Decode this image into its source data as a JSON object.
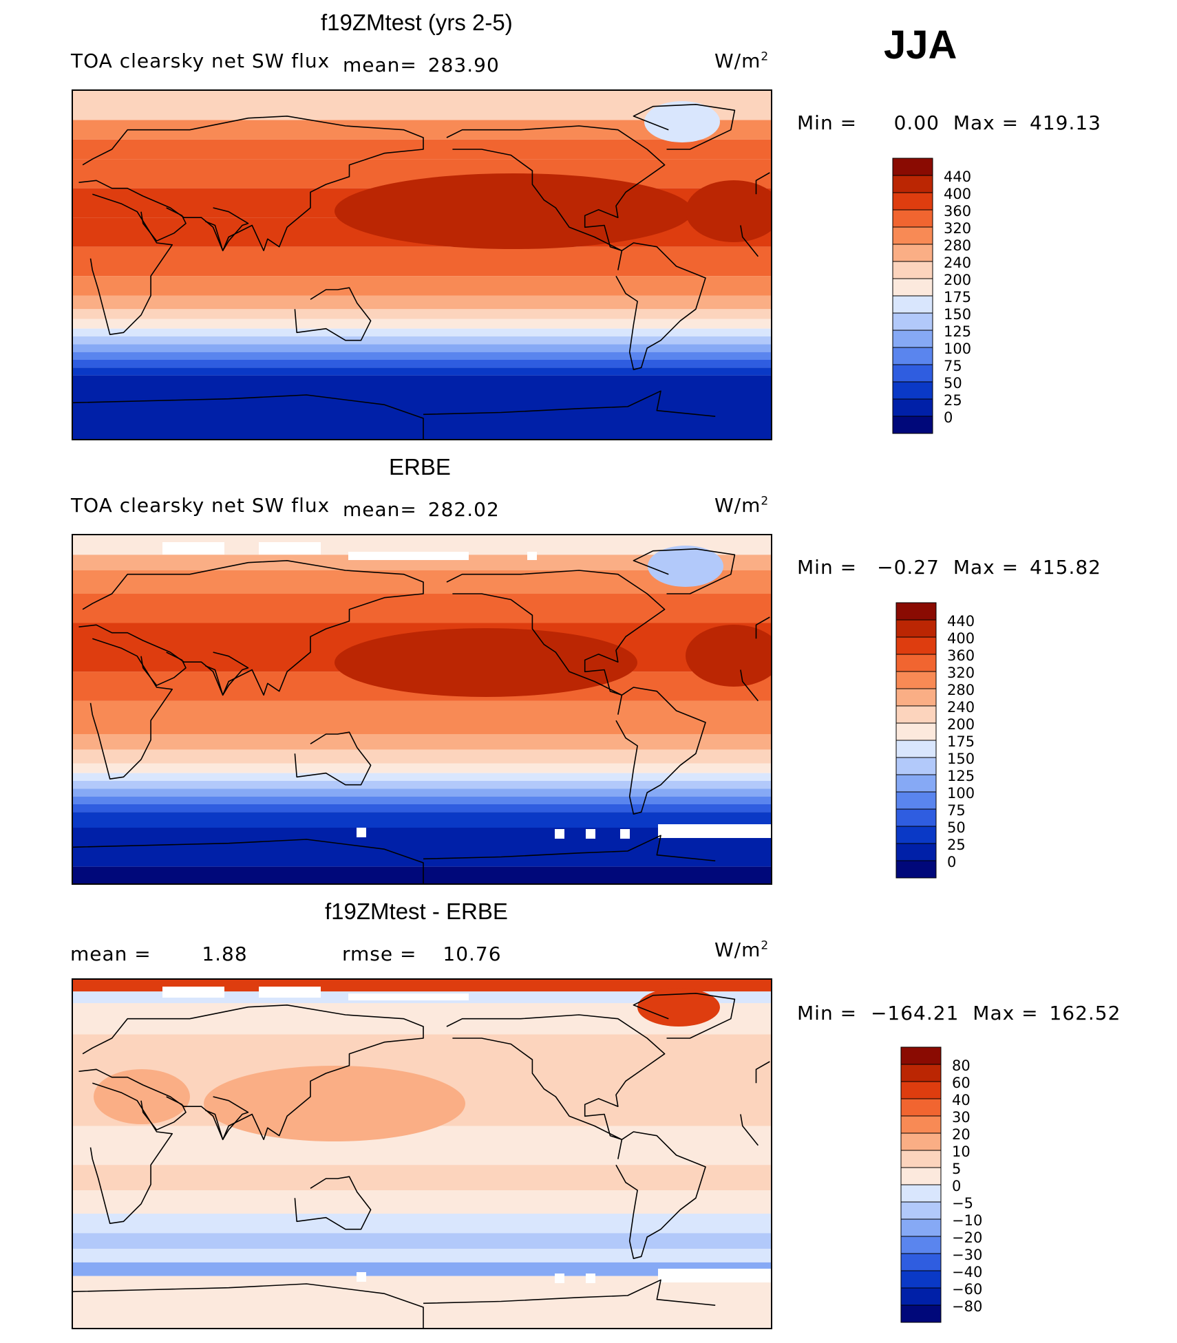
{
  "season": "JJA",
  "colors": {
    "main_scale": [
      "#00087a",
      "#0020a8",
      "#0a39c6",
      "#2f5de0",
      "#5a85ee",
      "#86a9f5",
      "#b2c9fa",
      "#d9e6fd",
      "#fce9dd",
      "#fcd4bd",
      "#faae85",
      "#f88a55",
      "#f16530",
      "#de3d0f",
      "#bb2603",
      "#8a0b02"
    ],
    "diff_scale": [
      "#00087a",
      "#0020a8",
      "#0a39c6",
      "#2f5de0",
      "#5a85ee",
      "#86a9f5",
      "#b2c9fa",
      "#d9e6fd",
      "#fce9dd",
      "#fcd4bd",
      "#faae85",
      "#f88a55",
      "#f16530",
      "#de3d0f",
      "#bb2603",
      "#8a0b02"
    ]
  },
  "panels": [
    {
      "title": "f19ZMtest (yrs 2-5)",
      "left_label": "TOA clearsky net SW flux",
      "mean_label": "mean=",
      "mean_value": "283.90",
      "units": "W/m",
      "units_sup": "2",
      "min_label": "Min =",
      "min_value": "0.00",
      "max_label": "Max =",
      "max_value": "419.13"
    },
    {
      "title": "ERBE",
      "left_label": "TOA clearsky net SW flux",
      "mean_label": "mean=",
      "mean_value": "282.02",
      "units": "W/m",
      "units_sup": "2",
      "min_label": "Min =",
      "min_value": "−0.27",
      "max_label": "Max =",
      "max_value": "415.82"
    },
    {
      "title": "f19ZMtest - ERBE",
      "mean_label": "mean =",
      "mean_value": "1.88",
      "rmse_label": "rmse =",
      "rmse_value": "10.76",
      "units": "W/m",
      "units_sup": "2",
      "min_label": "Min =",
      "min_value": "−164.21",
      "max_label": "Max =",
      "max_value": "162.52"
    }
  ],
  "chart_data": [
    {
      "type": "heatmap",
      "title": "f19ZMtest (yrs 2-5)",
      "variable": "TOA clearsky net SW flux",
      "units": "W/m2",
      "mean": 283.9,
      "min": 0.0,
      "max": 419.13,
      "contour_levels": [
        0,
        25,
        50,
        75,
        100,
        125,
        150,
        175,
        200,
        240,
        280,
        320,
        360,
        400,
        440
      ]
    },
    {
      "type": "heatmap",
      "title": "ERBE",
      "variable": "TOA clearsky net SW flux",
      "units": "W/m2",
      "mean": 282.02,
      "min": -0.27,
      "max": 415.82,
      "contour_levels": [
        0,
        25,
        50,
        75,
        100,
        125,
        150,
        175,
        200,
        240,
        280,
        320,
        360,
        400,
        440
      ]
    },
    {
      "type": "heatmap",
      "title": "f19ZMtest - ERBE",
      "units": "W/m2",
      "mean": 1.88,
      "rmse": 10.76,
      "min": -164.21,
      "max": 162.52,
      "contour_levels": [
        -80,
        -60,
        -40,
        -30,
        -20,
        -10,
        -5,
        0,
        5,
        10,
        20,
        30,
        40,
        60,
        80
      ]
    }
  ]
}
